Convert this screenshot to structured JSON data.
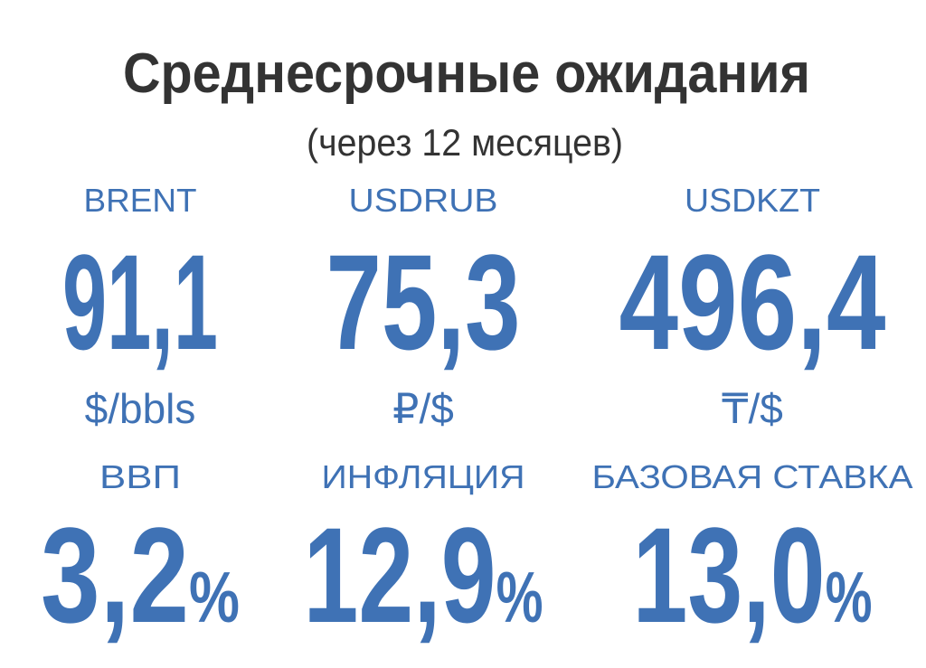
{
  "title": "Среднесрочные ожидания",
  "subtitle": "(через 12 месяцев)",
  "metrics": [
    {
      "label": "BRENT",
      "value": "91,1",
      "unit": "$/bbls"
    },
    {
      "label": "USDRUB",
      "value": "75,3",
      "unit": "₽/$"
    },
    {
      "label": "USDKZT",
      "value": "496,4",
      "unit": "₸/$"
    },
    {
      "label": "ВВП",
      "value": "3,2",
      "unit": "%"
    },
    {
      "label": "ИНФЛЯЦИЯ",
      "value": "12,9",
      "unit": "%"
    },
    {
      "label": "БАЗОВАЯ СТАВКА",
      "value": "13,0",
      "unit": "%"
    }
  ]
}
